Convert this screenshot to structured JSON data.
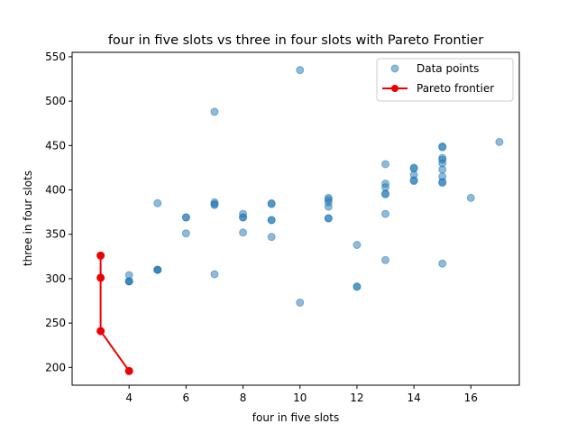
{
  "chart_data": {
    "type": "scatter",
    "title": "four in five slots vs three in four slots with Pareto Frontier",
    "xlabel": "four in five slots",
    "ylabel": "three in four slots",
    "xlim": [
      2.0,
      17.7
    ],
    "ylim": [
      180,
      555
    ],
    "xticks": [
      4,
      6,
      8,
      10,
      12,
      14,
      16
    ],
    "yticks": [
      200,
      250,
      300,
      350,
      400,
      450,
      500,
      550
    ],
    "grid": false,
    "legend_position": "top-right",
    "series": [
      {
        "name": "Data points",
        "kind": "scatter",
        "color": "#1f77b4",
        "alpha": 0.5,
        "points": [
          [
            4,
            304
          ],
          [
            4,
            297
          ],
          [
            4,
            297
          ],
          [
            4,
            297
          ],
          [
            5,
            385
          ],
          [
            5,
            310
          ],
          [
            5,
            310
          ],
          [
            5,
            310
          ],
          [
            6,
            369
          ],
          [
            6,
            369
          ],
          [
            6,
            351
          ],
          [
            7,
            488
          ],
          [
            7,
            386
          ],
          [
            7,
            384
          ],
          [
            7,
            383
          ],
          [
            7,
            305
          ],
          [
            8,
            373
          ],
          [
            8,
            369
          ],
          [
            8,
            369
          ],
          [
            8,
            352
          ],
          [
            9,
            385
          ],
          [
            9,
            384
          ],
          [
            9,
            366
          ],
          [
            9,
            366
          ],
          [
            9,
            347
          ],
          [
            10,
            535
          ],
          [
            10,
            273
          ],
          [
            11,
            391
          ],
          [
            11,
            389
          ],
          [
            11,
            386
          ],
          [
            11,
            381
          ],
          [
            11,
            368
          ],
          [
            11,
            368
          ],
          [
            12,
            338
          ],
          [
            12,
            291
          ],
          [
            12,
            291
          ],
          [
            13,
            429
          ],
          [
            13,
            407
          ],
          [
            13,
            403
          ],
          [
            13,
            396
          ],
          [
            13,
            395
          ],
          [
            13,
            373
          ],
          [
            13,
            321
          ],
          [
            14,
            425
          ],
          [
            14,
            424
          ],
          [
            14,
            417
          ],
          [
            14,
            411
          ],
          [
            14,
            410
          ],
          [
            15,
            449
          ],
          [
            15,
            448
          ],
          [
            15,
            436
          ],
          [
            15,
            434
          ],
          [
            15,
            430
          ],
          [
            15,
            423
          ],
          [
            15,
            415
          ],
          [
            15,
            409
          ],
          [
            15,
            408
          ],
          [
            15,
            317
          ],
          [
            16,
            391
          ],
          [
            17,
            454
          ]
        ]
      },
      {
        "name": "Pareto frontier",
        "kind": "line",
        "color": "#ee0000",
        "points": [
          [
            3,
            326
          ],
          [
            3,
            301
          ],
          [
            3,
            241
          ],
          [
            4,
            196
          ]
        ]
      }
    ]
  }
}
